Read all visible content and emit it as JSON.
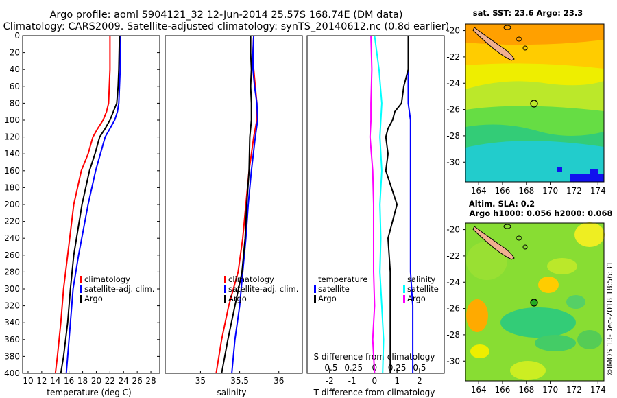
{
  "title": {
    "line1": "Argo profile: aoml 5904121_32 12-Jun-2014 25.57S 168.74E (DM data)",
    "line2": "Climatology: CARS2009. Satellite-adjusted climatology: synTS_20140612.nc (0.8d earlier)"
  },
  "depth_ticks": [
    "0",
    "20",
    "40",
    "60",
    "80",
    "100",
    "120",
    "140",
    "160",
    "180",
    "200",
    "220",
    "240",
    "260",
    "280",
    "300",
    "320",
    "340",
    "360",
    "380",
    "400"
  ],
  "colors": {
    "climatology": "#ff0000",
    "satellite": "#0000ff",
    "argo": "#000000",
    "s_diff": "#ff00ff",
    "sat_diff": "#00ffff"
  },
  "chart_data": [
    {
      "type": "line",
      "title": "",
      "xlabel": "temperature (deg C)",
      "ylabel": "depth",
      "xlim": [
        9.2,
        29.3
      ],
      "ylim": [
        400,
        0
      ],
      "xticks": [
        "10",
        "12",
        "14",
        "16",
        "18",
        "20",
        "22",
        "24",
        "26",
        "28"
      ],
      "legend": [
        "climatology",
        "satellite-adj. clim.",
        "Argo"
      ],
      "series": [
        {
          "name": "climatology",
          "depth": [
            0,
            40,
            60,
            80,
            90,
            100,
            110,
            120,
            140,
            160,
            200,
            260,
            300,
            340,
            380,
            400
          ],
          "values": [
            22.0,
            22.0,
            21.9,
            21.8,
            21.5,
            21.0,
            20.2,
            19.5,
            18.8,
            17.8,
            16.7,
            15.8,
            15.2,
            14.8,
            14.3,
            14.0
          ]
        },
        {
          "name": "satellite-adj. clim.",
          "depth": [
            0,
            40,
            60,
            80,
            90,
            100,
            110,
            120,
            140,
            160,
            200,
            260,
            300,
            340,
            380,
            400
          ],
          "values": [
            23.5,
            23.5,
            23.4,
            23.3,
            23.1,
            22.7,
            22.0,
            21.3,
            20.6,
            19.9,
            18.8,
            17.4,
            16.6,
            16.2,
            15.8,
            15.6
          ]
        },
        {
          "name": "Argo",
          "depth": [
            0,
            40,
            60,
            80,
            90,
            100,
            110,
            120,
            140,
            160,
            200,
            260,
            300,
            340,
            380,
            400
          ],
          "values": [
            23.4,
            23.3,
            23.2,
            23.0,
            22.5,
            22.0,
            21.3,
            20.5,
            19.8,
            19.0,
            17.9,
            16.7,
            16.2,
            15.8,
            15.2,
            14.8
          ]
        }
      ]
    },
    {
      "type": "line",
      "title": "",
      "xlabel": "salinity",
      "ylabel": "",
      "xlim": [
        34.55,
        36.3
      ],
      "ylim": [
        400,
        0
      ],
      "xticks": [
        "35",
        "35.5",
        "36"
      ],
      "legend": [
        "climatology",
        "satellite-adj. clim.",
        "Argo"
      ],
      "series": [
        {
          "name": "climatology",
          "depth": [
            0,
            20,
            40,
            60,
            80,
            100,
            120,
            160,
            200,
            240,
            280,
            320,
            360,
            400
          ],
          "values": [
            35.68,
            35.67,
            35.68,
            35.7,
            35.72,
            35.72,
            35.68,
            35.62,
            35.58,
            35.54,
            35.48,
            35.36,
            35.27,
            35.2
          ]
        },
        {
          "name": "satellite-adj. clim.",
          "depth": [
            0,
            20,
            40,
            60,
            80,
            100,
            120,
            160,
            200,
            240,
            280,
            320,
            360,
            400
          ],
          "values": [
            35.68,
            35.67,
            35.67,
            35.69,
            35.72,
            35.73,
            35.7,
            35.65,
            35.61,
            35.58,
            35.54,
            35.5,
            35.44,
            35.4
          ]
        },
        {
          "name": "Argo",
          "depth": [
            0,
            20,
            40,
            60,
            80,
            100,
            120,
            160,
            200,
            240,
            280,
            320,
            360,
            400
          ],
          "values": [
            35.64,
            35.64,
            35.65,
            35.64,
            35.65,
            35.65,
            35.63,
            35.62,
            35.59,
            35.57,
            35.53,
            35.44,
            35.35,
            35.27
          ]
        }
      ]
    },
    {
      "type": "line",
      "title": "",
      "xlabel": "T difference from climatology",
      "ylabel": "",
      "xlim": [
        -3,
        3.1
      ],
      "ylim": [
        400,
        0
      ],
      "xticks": [
        "-2",
        "-1",
        "0",
        "1",
        "2"
      ],
      "top_axis_label": "S difference from climatology",
      "top_xticks": [
        "-0.5",
        "-0.25",
        "0",
        "0.25",
        "0.5"
      ],
      "legend_left": [
        "temperature",
        "satellite",
        "Argo"
      ],
      "legend_right": [
        "salinity",
        "satellite",
        "Argo"
      ],
      "series": [
        {
          "name": "temperature satellite",
          "depth": [
            0,
            40,
            80,
            100,
            120,
            160,
            200,
            240,
            280,
            320,
            360,
            400
          ],
          "values": [
            1.5,
            1.5,
            1.5,
            1.6,
            1.6,
            1.6,
            1.6,
            1.6,
            1.6,
            1.7,
            1.7,
            1.7
          ]
        },
        {
          "name": "temperature Argo",
          "depth": [
            0,
            20,
            40,
            60,
            80,
            90,
            100,
            110,
            120,
            140,
            160,
            200,
            240,
            280,
            320,
            360,
            400
          ],
          "values": [
            1.5,
            1.5,
            1.5,
            1.3,
            1.2,
            0.9,
            0.8,
            0.6,
            0.5,
            0.6,
            0.5,
            1.0,
            0.6,
            0.7,
            0.7,
            0.7,
            0.7
          ]
        },
        {
          "name": "salinity satellite",
          "depth": [
            0,
            40,
            80,
            120,
            160,
            200,
            240,
            280,
            320,
            360,
            400
          ],
          "values": [
            0.0,
            0.05,
            0.08,
            0.06,
            0.08,
            0.06,
            0.07,
            0.06,
            0.08,
            0.1,
            0.09
          ]
        },
        {
          "name": "salinity Argo",
          "depth": [
            0,
            40,
            80,
            100,
            120,
            160,
            200,
            240,
            280,
            320,
            360,
            400
          ],
          "values": [
            -0.04,
            -0.03,
            -0.04,
            -0.04,
            -0.05,
            -0.02,
            -0.01,
            -0.01,
            -0.01,
            0.0,
            -0.02,
            0.0
          ]
        }
      ]
    }
  ],
  "map_sst": {
    "caption": "sat. SST: 23.6 Argo: 23.3",
    "yticks": [
      "-20",
      "-22",
      "-24",
      "-26",
      "-28",
      "-30"
    ],
    "xticks": [
      "164",
      "166",
      "168",
      "170",
      "172",
      "174"
    ]
  },
  "map_sla": {
    "caption1": "Altim. SLA: 0.2",
    "caption2": "Argo h1000: 0.056 h2000: 0.068",
    "yticks": [
      "-20",
      "-22",
      "-24",
      "-26",
      "-28",
      "-30"
    ],
    "xticks": [
      "164",
      "166",
      "168",
      "170",
      "172",
      "174"
    ]
  },
  "stamp": "©IMOS 13-Dec-2018 18:56:31"
}
